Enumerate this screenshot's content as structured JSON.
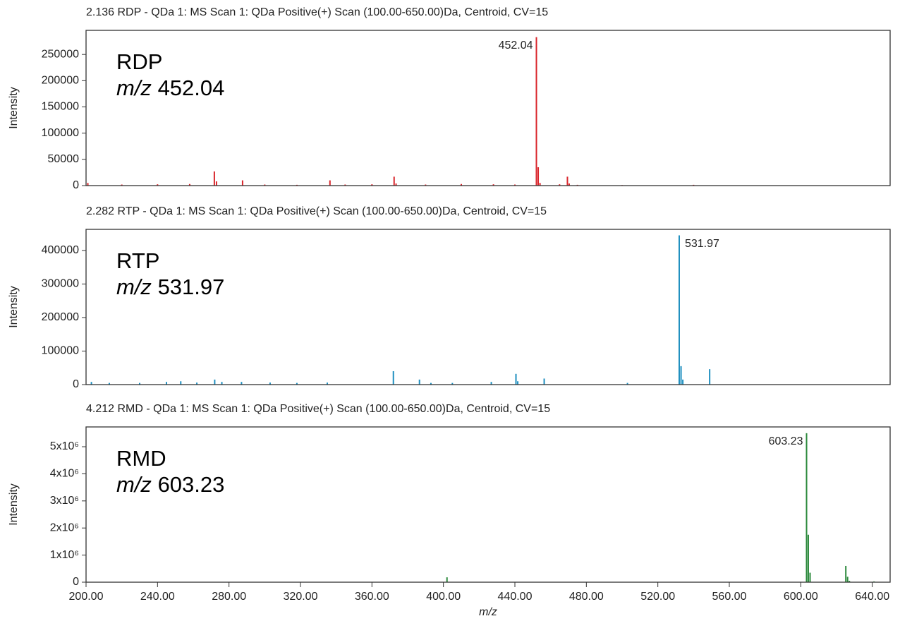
{
  "chart_data": [
    {
      "type": "bar",
      "title": "2.136 RDP - QDa 1: MS Scan 1: QDa Positive(+) Scan (100.00-650.00)Da, Centroid, CV=15",
      "annotation": "RDP",
      "annotation_unit": "m/z",
      "y_label": "Intensity",
      "color": "#d9262c",
      "x": [
        201,
        220,
        240,
        258,
        271.8,
        273,
        287.6,
        300,
        318,
        336.5,
        345,
        360,
        372.4,
        373.5,
        390,
        410,
        428,
        440,
        452.04,
        453.05,
        454.05,
        465,
        469.4,
        470.4,
        475,
        500,
        540
      ],
      "values": [
        5000,
        2000,
        2500,
        3000,
        27000,
        8000,
        10000,
        2000,
        1500,
        10000,
        2000,
        2500,
        17000,
        4000,
        2000,
        3000,
        2500,
        2000,
        283000,
        35000,
        5000,
        2500,
        17000,
        4000,
        1500,
        1000,
        1500
      ],
      "xlim": [
        200,
        650
      ],
      "ylim": [
        0,
        296000
      ],
      "yticks": [
        0,
        50000,
        100000,
        150000,
        200000,
        250000
      ]
    },
    {
      "type": "bar",
      "title": "2.282 RTP - QDa 1: MS Scan 1: QDa Positive(+) Scan (100.00-650.00)Da, Centroid, CV=15",
      "annotation": "RTP",
      "annotation_unit": "m/z",
      "y_label": "Intensity",
      "color": "#1f8fc0",
      "x": [
        203,
        213,
        230,
        245,
        253,
        262,
        272,
        276,
        287,
        303,
        318,
        335,
        372,
        386.6,
        393,
        405,
        426.8,
        440.6,
        441.6,
        456.4,
        503,
        531.97,
        532.98,
        533.98,
        549
      ],
      "values": [
        8000,
        5000,
        5000,
        8000,
        10000,
        6000,
        15000,
        8000,
        8000,
        6000,
        5000,
        6000,
        40000,
        15000,
        5000,
        5000,
        8000,
        32000,
        10000,
        18000,
        5000,
        445000,
        55000,
        15000,
        46000
      ],
      "xlim": [
        200,
        650
      ],
      "ylim": [
        0,
        463000
      ],
      "yticks": [
        0,
        100000,
        200000,
        300000,
        400000
      ]
    },
    {
      "type": "bar",
      "title": "4.212 RMD - QDa 1: MS Scan 1: QDa Positive(+) Scan (100.00-650.00)Da, Centroid, CV=15",
      "annotation": "RMD",
      "annotation_unit": "m/z",
      "y_label": "Intensity",
      "x_label": "m/z",
      "color": "#2e8b3e",
      "x": [
        402,
        603.23,
        604.2,
        605.2,
        625.2,
        626.2,
        627.2,
        641
      ],
      "values": [
        180000,
        5500000,
        1750000,
        350000,
        600000,
        200000,
        50000,
        30000
      ],
      "xlim": [
        200,
        650
      ],
      "ylim": [
        0,
        5730000
      ],
      "yticks": [
        0,
        {
          "value": 1000000,
          "label": "1x10⁶"
        },
        {
          "value": 2000000,
          "label": "2x10⁶"
        },
        {
          "value": 3000000,
          "label": "3x10⁶"
        },
        {
          "value": 4000000,
          "label": "4x10⁶"
        },
        {
          "value": 5000000,
          "label": "5x10⁶"
        }
      ],
      "xticks": [
        {
          "value": 200,
          "label": "200.00"
        },
        {
          "value": 240,
          "label": "240.00"
        },
        {
          "value": 280,
          "label": "280.00"
        },
        {
          "value": 320,
          "label": "320.00"
        },
        {
          "value": 360,
          "label": "360.00"
        },
        {
          "value": 400,
          "label": "400.00"
        },
        {
          "value": 440,
          "label": "440.00"
        },
        {
          "value": 480,
          "label": "480.00"
        },
        {
          "value": 520,
          "label": "520.00"
        },
        {
          "value": 560,
          "label": "560.00"
        },
        {
          "value": 600,
          "label": "600.00"
        },
        {
          "value": 640,
          "label": "640.00"
        }
      ]
    }
  ]
}
